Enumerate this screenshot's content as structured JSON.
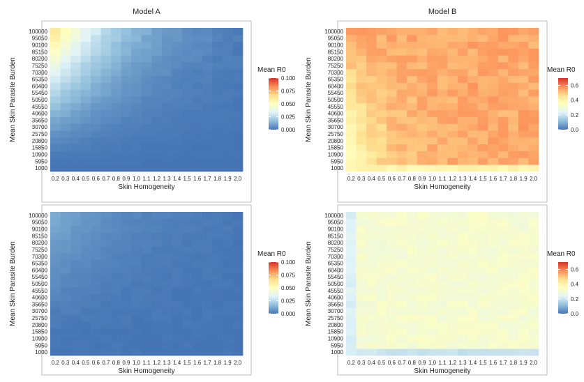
{
  "chart_data": [
    {
      "type": "heatmap",
      "title": "Model A",
      "xlabel": "Skin Homogeneity",
      "ylabel": "Mean Skin Parasite Burden",
      "x": [
        "0.2",
        "0.3",
        "0.4",
        "0.5",
        "0.6",
        "0.7",
        "0.8",
        "0.9",
        "1.0",
        "1.1",
        "1.2",
        "1.3",
        "1.4",
        "1.5",
        "1.6",
        "1.7",
        "1.8",
        "1.9",
        "2.0"
      ],
      "y": [
        "1000",
        "5950",
        "10900",
        "15850",
        "20800",
        "25750",
        "30700",
        "35650",
        "40600",
        "45550",
        "50500",
        "55450",
        "60400",
        "65350",
        "70300",
        "75250",
        "80200",
        "85150",
        "90100",
        "95050",
        "100000"
      ],
      "legend": {
        "title": "Mean R0",
        "ticks": [
          "0.000",
          "0.025",
          "0.050",
          "0.075",
          "0.100"
        ],
        "min": 0,
        "max": 0.1,
        "position": "right"
      },
      "grid": false,
      "pattern": "Values rise with parasite burden and fall with skin homogeneity; peak about 0.06 at x=0.2, y=100000; near 0 below y≈20000."
    },
    {
      "type": "heatmap",
      "title": "Model B",
      "xlabel": "Skin Homogeneity",
      "ylabel": "Mean Skin Parasite Burden",
      "x": [
        "0.2",
        "0.3",
        "0.4",
        "0.5",
        "0.6",
        "0.7",
        "0.8",
        "0.9",
        "1.0",
        "1.1",
        "1.2",
        "1.3",
        "1.4",
        "1.5",
        "1.6",
        "1.7",
        "1.8",
        "1.9",
        "2.0"
      ],
      "y": [
        "1000",
        "5950",
        "10900",
        "15850",
        "20800",
        "25750",
        "30700",
        "35650",
        "40600",
        "45550",
        "50500",
        "55450",
        "60400",
        "65350",
        "70300",
        "75250",
        "80200",
        "85150",
        "90100",
        "95050",
        "100000"
      ],
      "legend": {
        "title": "Mean R0",
        "ticks": [
          "0.0",
          "0.2",
          "0.4",
          "0.6"
        ],
        "min": 0,
        "max": 0.7,
        "position": "right"
      },
      "grid": false,
      "pattern": "Mostly high (about 0.5–0.6) everywhere; lower (about 0.35) at y=1000 and at low homogeneity with low burden."
    },
    {
      "type": "heatmap",
      "title": "",
      "xlabel": "Skin Homogeneity",
      "ylabel": "Mean Skin Parasite Burden",
      "x": [
        "0.2",
        "0.3",
        "0.4",
        "0.5",
        "0.6",
        "0.7",
        "0.8",
        "0.9",
        "1.0",
        "1.1",
        "1.2",
        "1.3",
        "1.4",
        "1.5",
        "1.6",
        "1.7",
        "1.8",
        "1.9",
        "2.0"
      ],
      "y": [
        "1000",
        "5950",
        "10900",
        "15850",
        "20800",
        "25750",
        "30700",
        "35650",
        "40600",
        "45550",
        "50500",
        "55450",
        "60400",
        "65350",
        "70300",
        "75250",
        "80200",
        "85150",
        "90100",
        "95050",
        "100000"
      ],
      "legend": {
        "title": "Mean R0",
        "ticks": [
          "0.000",
          "0.025",
          "0.050",
          "0.075",
          "0.100"
        ],
        "min": 0,
        "max": 0.1,
        "position": "right"
      },
      "grid": false,
      "pattern": "Uniformly low (0 to about 0.012); slightly higher at top-left (low homogeneity, high burden)."
    },
    {
      "type": "heatmap",
      "title": "",
      "xlabel": "Skin Homogeneity",
      "ylabel": "Mean Skin Parasite Burden",
      "x": [
        "0.2",
        "0.3",
        "0.4",
        "0.5",
        "0.6",
        "0.7",
        "0.8",
        "0.9",
        "1.0",
        "1.1",
        "1.2",
        "1.3",
        "1.4",
        "1.5",
        "1.6",
        "1.7",
        "1.8",
        "1.9",
        "2.0"
      ],
      "y": [
        "1000",
        "5950",
        "10900",
        "15850",
        "20800",
        "25750",
        "30700",
        "35650",
        "40600",
        "45550",
        "50500",
        "55450",
        "60400",
        "65350",
        "70300",
        "75250",
        "80200",
        "85150",
        "90100",
        "95050",
        "100000"
      ],
      "legend": {
        "title": "Mean R0",
        "ticks": [
          "0.0",
          "0.2",
          "0.4",
          "0.6"
        ],
        "min": 0,
        "max": 0.7,
        "position": "right"
      },
      "grid": false,
      "pattern": "Moderate values about 0.28–0.35 across most cells; lower (about 0.2) at y=1000 and in the x=0.2 column."
    }
  ],
  "colors": {
    "scale": [
      "#4575b4",
      "#91bfdb",
      "#e0f3f8",
      "#ffffbf",
      "#fee090",
      "#fc8d59",
      "#d73027"
    ],
    "panel_border": "#bdbdbd",
    "text": "#222222"
  }
}
